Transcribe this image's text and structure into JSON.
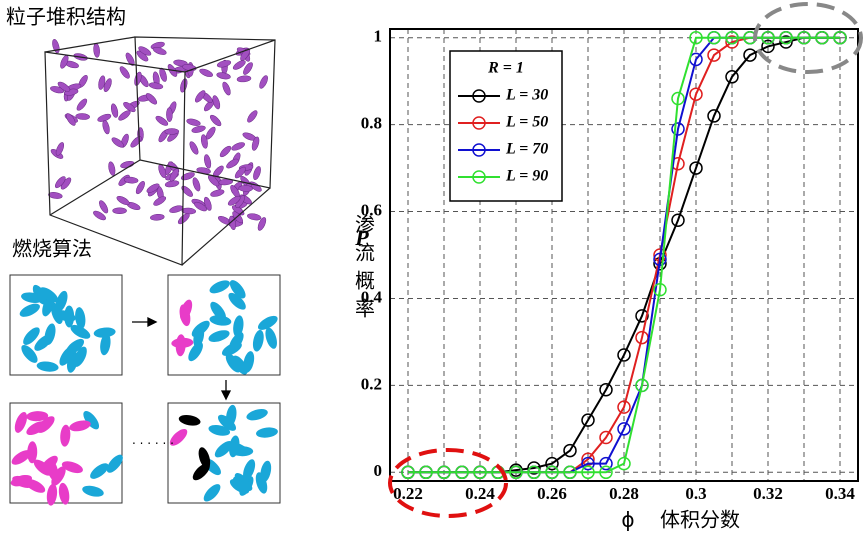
{
  "labels": {
    "packing": "粒子堆积结构",
    "burning": "燃烧算法"
  },
  "chart_data": {
    "type": "line",
    "ylabel": "P",
    "ylabel_zh": "渗流概率",
    "xlabel": "ϕ",
    "xlabel_zh": "体积分数",
    "legend_title": "R = 1",
    "x": [
      0.22,
      0.225,
      0.23,
      0.235,
      0.24,
      0.245,
      0.25,
      0.255,
      0.26,
      0.265,
      0.27,
      0.275,
      0.28,
      0.285,
      0.29,
      0.295,
      0.3,
      0.305,
      0.31,
      0.315,
      0.32,
      0.325,
      0.33,
      0.335,
      0.34
    ],
    "series": [
      {
        "name": "L = 30",
        "color": "#000000",
        "values": [
          0,
          0,
          0,
          0,
          0,
          0,
          0.005,
          0.01,
          0.02,
          0.05,
          0.12,
          0.19,
          0.27,
          0.36,
          0.48,
          0.58,
          0.7,
          0.82,
          0.91,
          0.96,
          0.98,
          0.99,
          1,
          1,
          1
        ]
      },
      {
        "name": "L = 50",
        "color": "#e02020",
        "values": [
          0,
          0,
          0,
          0,
          0,
          0,
          0,
          0,
          0,
          0,
          0.03,
          0.08,
          0.15,
          0.31,
          0.5,
          0.71,
          0.87,
          0.96,
          0.99,
          1,
          1,
          1,
          1,
          1,
          1
        ]
      },
      {
        "name": "L = 70",
        "color": "#1010d0",
        "values": [
          0,
          0,
          0,
          0,
          0,
          0,
          0,
          0,
          0,
          0,
          0.02,
          0.02,
          0.1,
          0.2,
          0.49,
          0.79,
          0.95,
          1,
          1,
          1,
          1,
          1,
          1,
          1,
          1
        ]
      },
      {
        "name": "L = 90",
        "color": "#30e030",
        "values": [
          0,
          0,
          0,
          0,
          0,
          0,
          0,
          0,
          0,
          0,
          0,
          0,
          0.02,
          0.2,
          0.42,
          0.86,
          1,
          1,
          1,
          1,
          1,
          1,
          1,
          1,
          1
        ]
      }
    ],
    "xlim": [
      0.215,
      0.345
    ],
    "ylim": [
      -0.02,
      1.02
    ],
    "xticks": [
      0.22,
      0.24,
      0.26,
      0.28,
      0.3,
      0.32,
      0.34
    ],
    "yticks": [
      0,
      0.2,
      0.4,
      0.6,
      0.8,
      1
    ],
    "grid": true,
    "legend": "upper left"
  }
}
